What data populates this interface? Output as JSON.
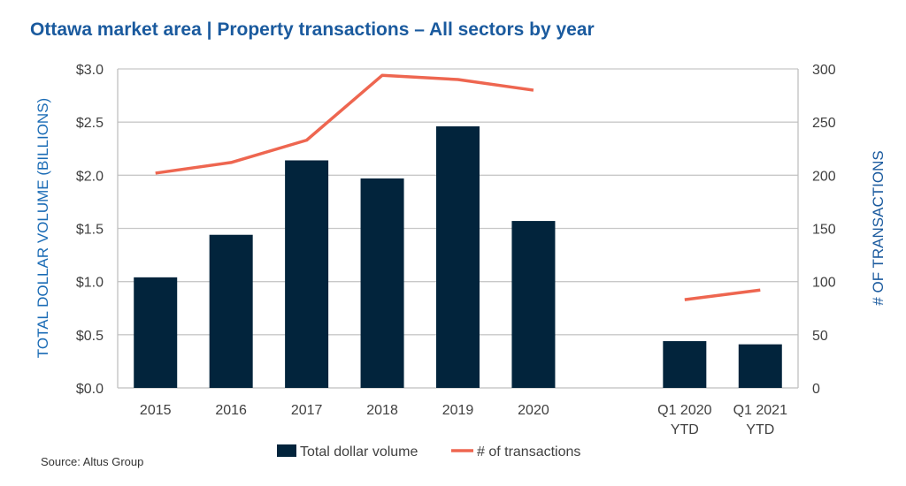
{
  "chart_data": {
    "type": "bar+line",
    "title": "Ottawa market area | Property transactions – All sectors by year",
    "categories": [
      "2015",
      "2016",
      "2017",
      "2018",
      "2019",
      "2020",
      "",
      "Q1 2020 YTD",
      "Q1 2021 YTD"
    ],
    "series": [
      {
        "name": "Total dollar volume",
        "type": "bar",
        "axis": "left",
        "color": "#02243c",
        "values": [
          1.04,
          1.44,
          2.14,
          1.97,
          2.46,
          1.57,
          null,
          0.44,
          0.41
        ]
      },
      {
        "name": "# of transactions",
        "type": "line",
        "axis": "right",
        "color": "#ee6650",
        "values": [
          202,
          212,
          233,
          294,
          290,
          280,
          null,
          83,
          92
        ]
      }
    ],
    "ylabel": "TOTAL DOLLAR VOLUME (BILLIONS)",
    "y2label": "# OF TRANSACTIONS",
    "ylim": [
      0,
      3.0
    ],
    "y2lim": [
      0,
      300
    ],
    "yticks": [
      "$0.0",
      "$0.5",
      "$1.0",
      "$1.5",
      "$2.0",
      "$2.5",
      "$3.0"
    ],
    "y2ticks": [
      "0",
      "50",
      "100",
      "150",
      "200",
      "250",
      "300"
    ],
    "grid": true,
    "legend": "bottom",
    "source": "Source:  Altus Group"
  }
}
